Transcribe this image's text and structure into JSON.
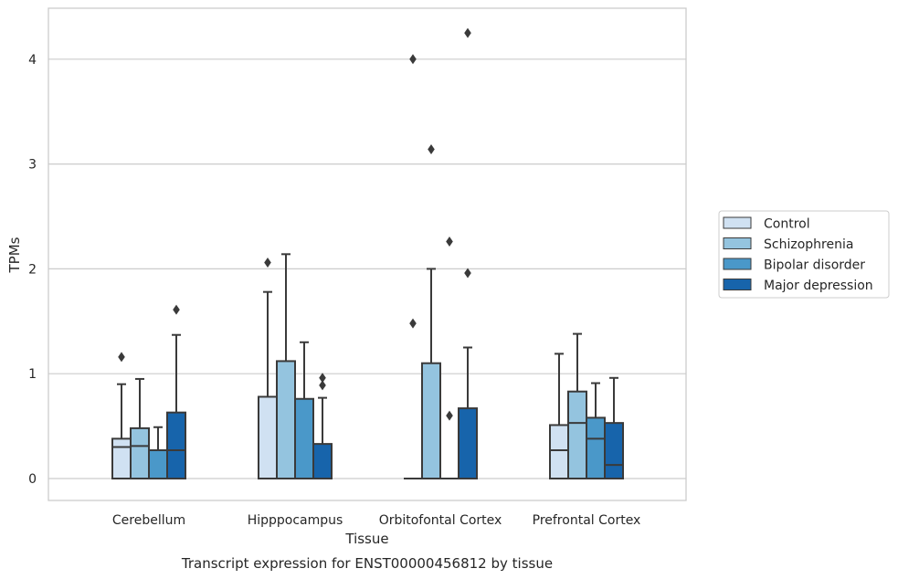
{
  "chart_data": {
    "type": "box",
    "title": "",
    "caption": "Transcript expression for ENST00000456812 by tissue",
    "xlabel": "Tissue",
    "ylabel": "TPMs",
    "ylim": [
      -0.2,
      4.5
    ],
    "yticks": [
      0,
      1,
      2,
      3,
      4
    ],
    "grid": "horizontal",
    "legend_position": "right",
    "categories": [
      "Cerebellum",
      "Hipppocampus",
      "Orbitofontal Cortex",
      "Prefrontal Cortex"
    ],
    "series": [
      {
        "name": "Control",
        "color": "#d0e1f2",
        "boxes": [
          {
            "q1": 0,
            "median": 0.3,
            "q3": 0.38,
            "whisker_low": 0,
            "whisker_high": 0.9,
            "outliers": [
              1.16
            ]
          },
          {
            "q1": 0,
            "median": 0,
            "q3": 0.78,
            "whisker_low": 0,
            "whisker_high": 1.78,
            "outliers": [
              2.06
            ]
          },
          {
            "q1": 0,
            "median": 0,
            "q3": 0,
            "whisker_low": 0,
            "whisker_high": 0,
            "outliers": [
              1.48,
              4.0
            ]
          },
          {
            "q1": 0,
            "median": 0.27,
            "q3": 0.51,
            "whisker_low": 0,
            "whisker_high": 1.19,
            "outliers": []
          }
        ]
      },
      {
        "name": "Schizophrenia",
        "color": "#94c4df",
        "boxes": [
          {
            "q1": 0,
            "median": 0.31,
            "q3": 0.48,
            "whisker_low": 0,
            "whisker_high": 0.95,
            "outliers": []
          },
          {
            "q1": 0,
            "median": 0,
            "q3": 1.12,
            "whisker_low": 0,
            "whisker_high": 2.14,
            "outliers": []
          },
          {
            "q1": 0,
            "median": 0,
            "q3": 1.1,
            "whisker_low": 0,
            "whisker_high": 2.0,
            "outliers": [
              3.14
            ]
          },
          {
            "q1": 0,
            "median": 0.53,
            "q3": 0.83,
            "whisker_low": 0,
            "whisker_high": 1.38,
            "outliers": []
          }
        ]
      },
      {
        "name": "Bipolar disorder",
        "color": "#4a98c9",
        "boxes": [
          {
            "q1": 0,
            "median": 0.27,
            "q3": 0.27,
            "whisker_low": 0,
            "whisker_high": 0.49,
            "outliers": []
          },
          {
            "q1": 0,
            "median": 0,
            "q3": 0.76,
            "whisker_low": 0,
            "whisker_high": 1.3,
            "outliers": []
          },
          {
            "q1": 0,
            "median": 0,
            "q3": 0,
            "whisker_low": 0,
            "whisker_high": 0,
            "outliers": [
              0.6,
              2.26
            ]
          },
          {
            "q1": 0,
            "median": 0.38,
            "q3": 0.58,
            "whisker_low": 0,
            "whisker_high": 0.91,
            "outliers": []
          }
        ]
      },
      {
        "name": "Major depression",
        "color": "#1764ab",
        "boxes": [
          {
            "q1": 0,
            "median": 0.27,
            "q3": 0.63,
            "whisker_low": 0,
            "whisker_high": 1.37,
            "outliers": [
              1.61
            ]
          },
          {
            "q1": 0,
            "median": 0,
            "q3": 0.33,
            "whisker_low": 0,
            "whisker_high": 0.77,
            "outliers": [
              0.89,
              0.96
            ]
          },
          {
            "q1": 0,
            "median": 0,
            "q3": 0.67,
            "whisker_low": 0,
            "whisker_high": 1.25,
            "outliers": [
              1.96,
              4.25
            ]
          },
          {
            "q1": 0,
            "median": 0.13,
            "q3": 0.53,
            "whisker_low": 0,
            "whisker_high": 0.96,
            "outliers": []
          }
        ]
      }
    ]
  }
}
